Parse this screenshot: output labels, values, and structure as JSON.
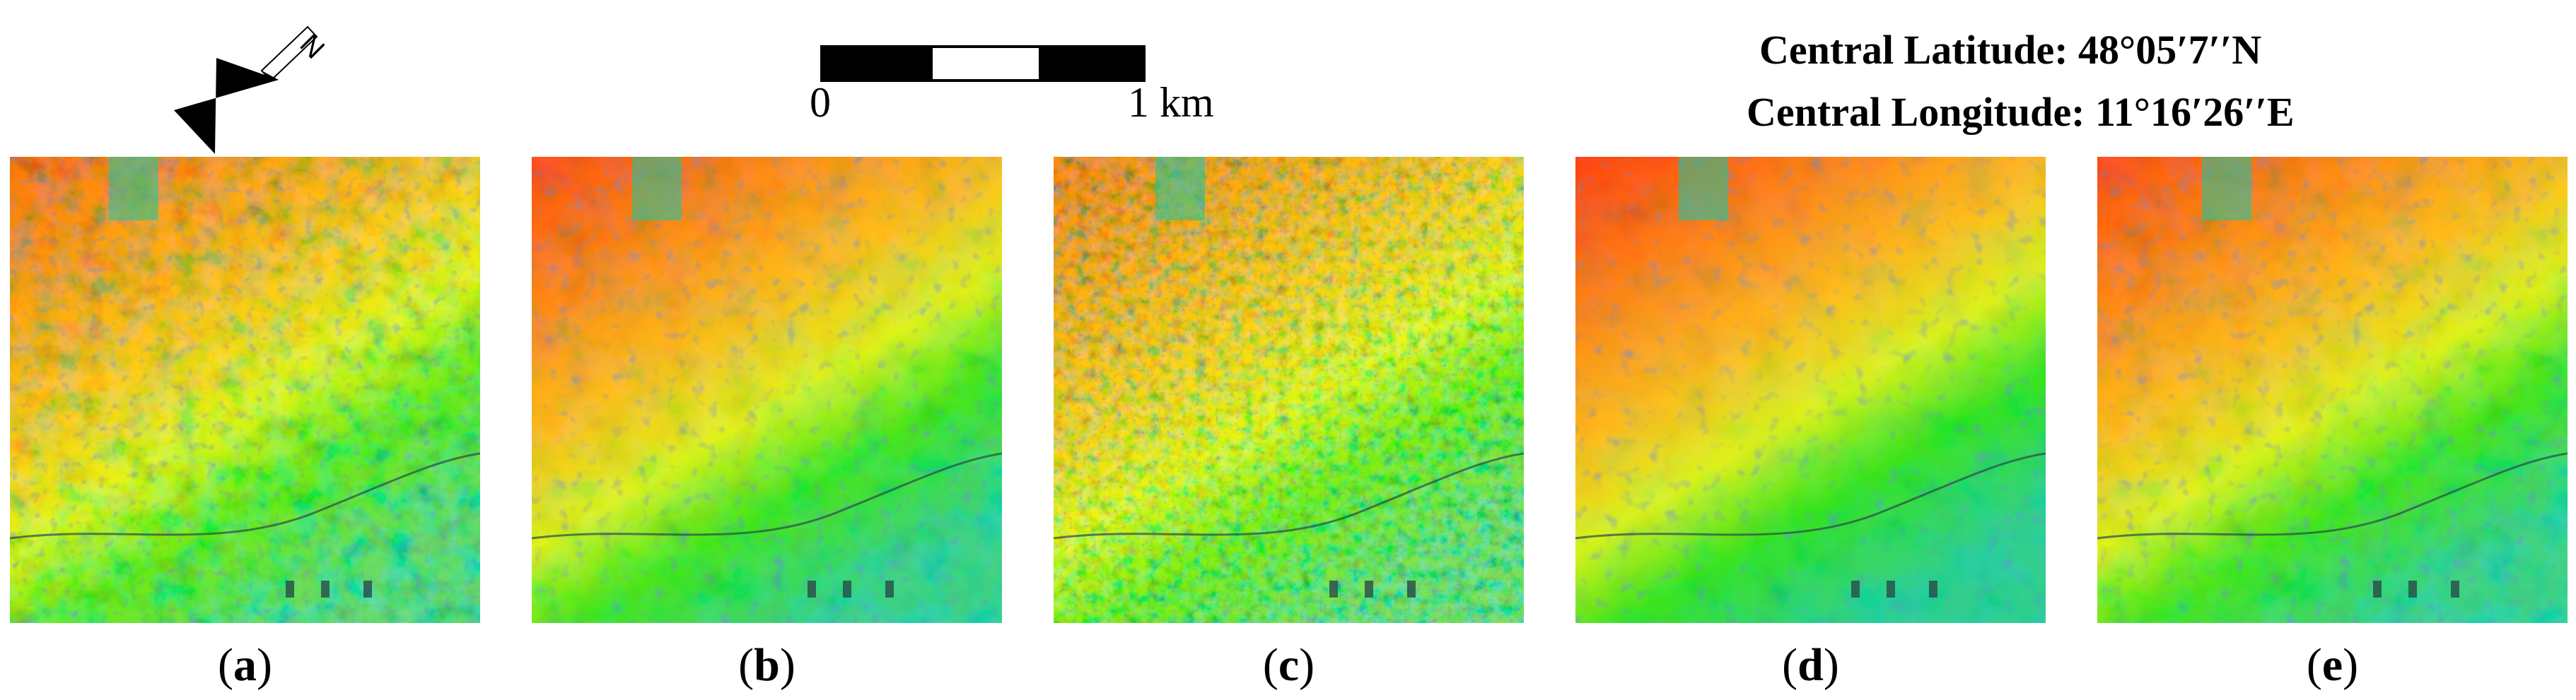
{
  "north_arrow": {
    "label": "N",
    "icon": "north-arrow-icon"
  },
  "scale_bar": {
    "start_label": "0",
    "end_label": "1 km"
  },
  "location": {
    "latitude": "Central Latitude: 48°05′7′′N",
    "longitude": "Central Longitude: 11°16′26′′E"
  },
  "colors": {
    "high": "#ff2a10",
    "mid_high": "#ffb020",
    "mid": "#d8ef20",
    "low": "#22e020",
    "lower": "#18c9a0",
    "lowest": "#2040ff",
    "dark": "#2b4a48"
  },
  "panels": [
    {
      "label": "a",
      "style": "speckled"
    },
    {
      "label": "b",
      "style": "smooth"
    },
    {
      "label": "c",
      "style": "noisy"
    },
    {
      "label": "d",
      "style": "saturated"
    },
    {
      "label": "e",
      "style": "smooth"
    }
  ]
}
